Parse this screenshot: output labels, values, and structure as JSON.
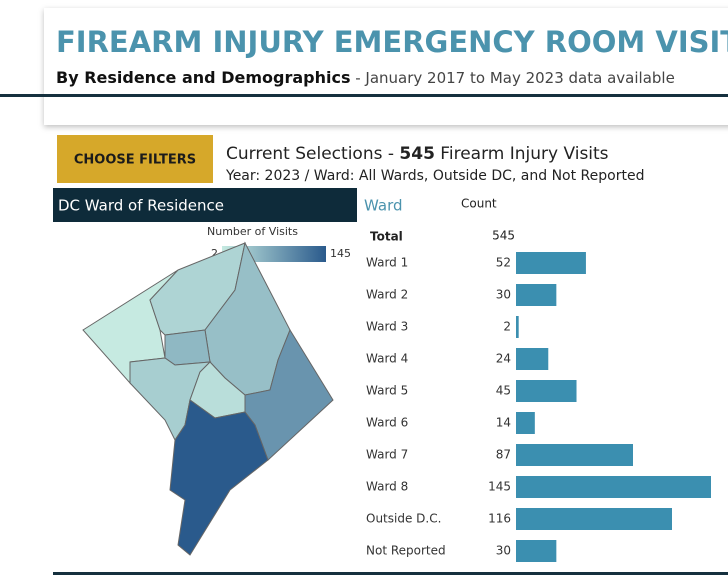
{
  "header": {
    "title": "FIREARM INJURY EMERGENCY ROOM VISITS",
    "subtitle_bold": "By Residence and Demographics",
    "subtitle_rest": " - January 2017 to May 2023 data available"
  },
  "filters": {
    "button": "CHOOSE FILTERS",
    "selection_prefix": "Current Selections - ",
    "selection_count": 545,
    "selection_suffix": " Firearm Injury Visits",
    "selection_detail": "Year: 2023 / Ward: All Wards, Outside DC, and Not Reported"
  },
  "map": {
    "title": "DC Ward of Residence",
    "legend_title": "Number of Visits",
    "legend_min": 2,
    "legend_max": 145,
    "color_low": "#c6eae1",
    "color_high": "#2a5a8c"
  },
  "chart_data": {
    "type": "bar",
    "column_label": "Ward",
    "value_label": "Count",
    "total_label": "Total",
    "total": 545,
    "categories": [
      "Ward 1",
      "Ward 2",
      "Ward 3",
      "Ward 4",
      "Ward 5",
      "Ward 6",
      "Ward 7",
      "Ward 8",
      "Outside D.C.",
      "Not Reported"
    ],
    "values": [
      52,
      30,
      2,
      24,
      45,
      14,
      87,
      145,
      116,
      30
    ],
    "color": "#3b8fb0"
  }
}
